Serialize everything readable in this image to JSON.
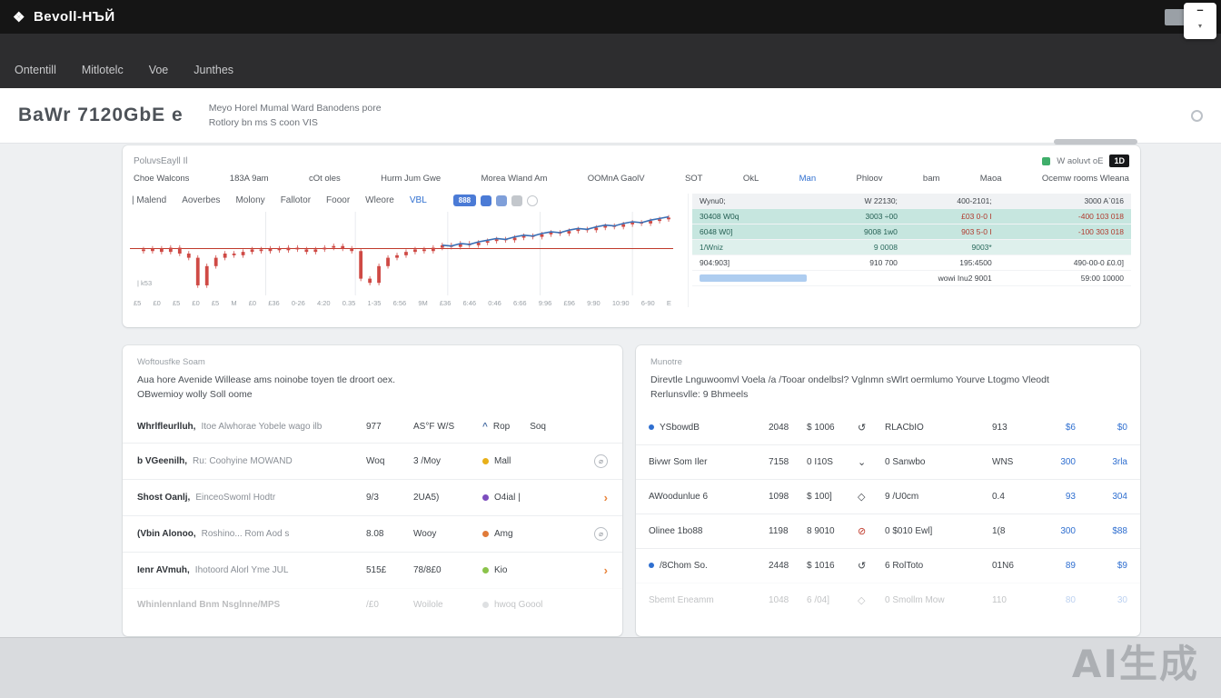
{
  "topbar": {
    "brand": "Bevoll-НЪЙ",
    "minimize_glyph": "–",
    "caret_glyph": "▾",
    "brand_icon": "❖",
    "sort_icon": "⇅"
  },
  "navbar": {
    "items": [
      "Ontentill",
      "Mitlotelc",
      "Voe",
      "Junthes"
    ]
  },
  "header": {
    "title": "BaWr 7120GbE e",
    "subtitle1": "Meyo Horel Mumal Ward Banodens pore",
    "subtitle2": "Rotlory bn ms S coon VIS"
  },
  "chart_card": {
    "title": "PoluvsEayll Il",
    "legend_label": "W aoluvt oE",
    "badge": "1D",
    "pill_label": "888",
    "annotation": "| k53",
    "filters": [
      {
        "label": "Choe Walcons"
      },
      {
        "label": "183A 9am"
      },
      {
        "label": "cOt oles"
      },
      {
        "label": "Hurm Jum Gwe"
      },
      {
        "label": "Morea Wland Am"
      },
      {
        "label": "OOMnA GaolV"
      },
      {
        "label": "SOT"
      },
      {
        "label": "OkL"
      },
      {
        "label": "Man",
        "accent": true
      },
      {
        "label": "Phloov"
      },
      {
        "label": "bam"
      },
      {
        "label": "Maoa"
      },
      {
        "label": "Ocemw rooms Wleana"
      }
    ],
    "tabs": [
      {
        "label": "| Malend"
      },
      {
        "label": "Aoverbes"
      },
      {
        "label": "Molony"
      },
      {
        "label": "Fallotor"
      },
      {
        "label": "Fooor"
      },
      {
        "label": "Wleore"
      },
      {
        "label": "VBL",
        "accent": true
      }
    ],
    "x_labels": [
      "£5",
      "£0",
      "£5",
      "£0",
      "£5",
      "M",
      "£0",
      "£36",
      "0-26",
      "4:20",
      "0.35",
      "1-35",
      "6:56",
      "9M",
      "£36",
      "6:46",
      "0:46",
      "6:66",
      "9:96",
      "£96",
      "9:90",
      "10:90",
      "6-90",
      "E"
    ],
    "side_table": {
      "rows": [
        {
          "bg": "gray",
          "cells": [
            "Wynu0;",
            "W 22130;",
            "400-2101;",
            "3000 A`016"
          ]
        },
        {
          "bg": "teal",
          "cells": [
            "30408 W0q",
            "3003 ÷00",
            "£03 0-0 I",
            "-400 103 018"
          ]
        },
        {
          "bg": "teal",
          "cells": [
            "6048 W0]",
            "9008 1w0",
            "903 5-0 I",
            "-100 303 018"
          ]
        },
        {
          "bg": "teal2",
          "cells": [
            "1/Wniz",
            "9 0008",
            "9003*",
            ""
          ]
        },
        {
          "bg": "white",
          "cells": [
            "904:903]",
            "910 700",
            "195:4500",
            "490-00-0 £0.0]"
          ]
        },
        {
          "bg": "white",
          "bar": true,
          "cells": [
            "",
            "",
            "wowi Inu2 9001",
            "59:00 10000"
          ]
        }
      ]
    },
    "chart_data": {
      "type": "candlestick+line",
      "closes": [
        55,
        53,
        56,
        52,
        57,
        50,
        45,
        12,
        35,
        45,
        50,
        48,
        52,
        55,
        53,
        56,
        54,
        57,
        55,
        52,
        55,
        57,
        59,
        56,
        53,
        20,
        15,
        35,
        45,
        48,
        52,
        55,
        53,
        57,
        60,
        58,
        62,
        60,
        63,
        65,
        67,
        66,
        69,
        71,
        70,
        73,
        75,
        74,
        77,
        79,
        78,
        81,
        83,
        82,
        85,
        87,
        86,
        89,
        91,
        93
      ],
      "line_start": 34,
      "line": [
        60,
        59,
        62,
        61,
        64,
        66,
        68,
        67,
        70,
        72,
        71,
        74,
        76,
        75,
        78,
        80,
        79,
        82,
        84,
        83,
        86,
        88,
        87,
        90,
        92,
        94
      ],
      "resistance": 56,
      "candle_color": "#cf4a45",
      "line_color": "#3a6fb5",
      "resistance_color": "#c0392b",
      "ylim": [
        0,
        100
      ]
    }
  },
  "left_card": {
    "title": "Woftousfke Soam",
    "desc1": "Aua hore Avenide Willease ams noinobe toyen tle droort oex.",
    "desc2": "OBwemioy wolly Soll oome",
    "rows": [
      {
        "name": "Whrlfleurlluh,",
        "desc": "Itoe Alwhorae Yobele wago ilb",
        "v1": "977",
        "v2": "AS°F W/S",
        "dot": "#4a6fa5",
        "dot_glyph": "^",
        "label": "Rop",
        "extra": "Soq",
        "action": ""
      },
      {
        "name": "b VGeenilh,",
        "desc": "Ru: Coohyine MOWAND",
        "v1": "Woq",
        "v2": "3 /Moy",
        "dot": "#e8b019",
        "label": "Mall",
        "extra": "",
        "action": "link"
      },
      {
        "name": "Shost Oanlj,",
        "desc": "EinceoSwoml Hodtr",
        "v1": "9/3",
        "v2": "2UA5)",
        "dot": "#7c4dbe",
        "label": "O4ial  |",
        "extra": "",
        "action": "arrow"
      },
      {
        "name": "(Vbin Alonoo,",
        "desc": "Roshino... Rom Aod s",
        "v1": "8.08",
        "v2": "Wooy",
        "dot": "#e07b39",
        "label": "Amg",
        "extra": "",
        "action": "link"
      },
      {
        "name": "Ienr AVmuh,",
        "desc": "Ihotoord Alorl Yme JUL",
        "v1": "515£",
        "v2": "78/8£0",
        "dot": "#8bc34a",
        "label": "Kio",
        "extra": "",
        "action": "arrow"
      },
      {
        "name": "Whinlennland Bnm Nsglnne/MPS",
        "desc": "",
        "v1": "/£0",
        "v2": "Woilole",
        "dot": "#9aa0a6",
        "label": "hwoq Goool",
        "extra": "",
        "action": "",
        "faded": true
      }
    ]
  },
  "right_card": {
    "title": "Munotre",
    "desc1": "Direvtle Lnguwoomvl Voela /a /Tooar ondelbsl? Vglnmn sWlrt oermlumo Yourve Ltogmo Vleodt",
    "desc2": "Rerlunsvlle: 9 Bhmeels",
    "rows": [
      {
        "dot": true,
        "name": "YSbowdB",
        "v1": "2048",
        "v2": "$ 1006",
        "icon": "↺",
        "icon_color": "#3f444a",
        "name2": "RLACbIO",
        "v3": "913",
        "link1": "$6",
        "link2": "$0"
      },
      {
        "dot": false,
        "name": "Bivwr Som Iler",
        "v1": "7158",
        "v2": "0 I10S",
        "icon": "⌄",
        "icon_color": "#3f444a",
        "name2": "0 Sanwbo",
        "v3": "WNS",
        "link1": "300",
        "link2": "3rla"
      },
      {
        "dot": false,
        "name": "AWoodunlue 6",
        "v1": "1098",
        "v2": "$ 100]",
        "icon": "◇",
        "icon_color": "#3f444a",
        "name2": "9 /U0cm",
        "v3": "0.4",
        "link1": "93",
        "link2": "304"
      },
      {
        "dot": false,
        "name": "Olinee 1bo88",
        "v1": "1198",
        "v2": "8 9010",
        "icon": "⊘",
        "icon_color": "#c0392b",
        "name2": "0 $010 Ewl]",
        "v3": "1(8",
        "link1": "300",
        "link2": "$88"
      },
      {
        "dot": true,
        "name": "/8Chom So.",
        "v1": "2448",
        "v2": "$ 1016",
        "icon": "↺",
        "icon_color": "#3f444a",
        "name2": "6 RolToto",
        "v3": "01N6",
        "link1": "89",
        "link2": "$9"
      },
      {
        "dot": false,
        "name": "Sbemt Eneamm",
        "v1": "1048",
        "v2": "6 /04]",
        "icon": "◇",
        "icon_color": "#3f444a",
        "name2": "0 Smollm Mow",
        "v3": "110",
        "link1": "80",
        "link2": "30",
        "faded": true
      }
    ]
  },
  "watermark": "AI生成"
}
